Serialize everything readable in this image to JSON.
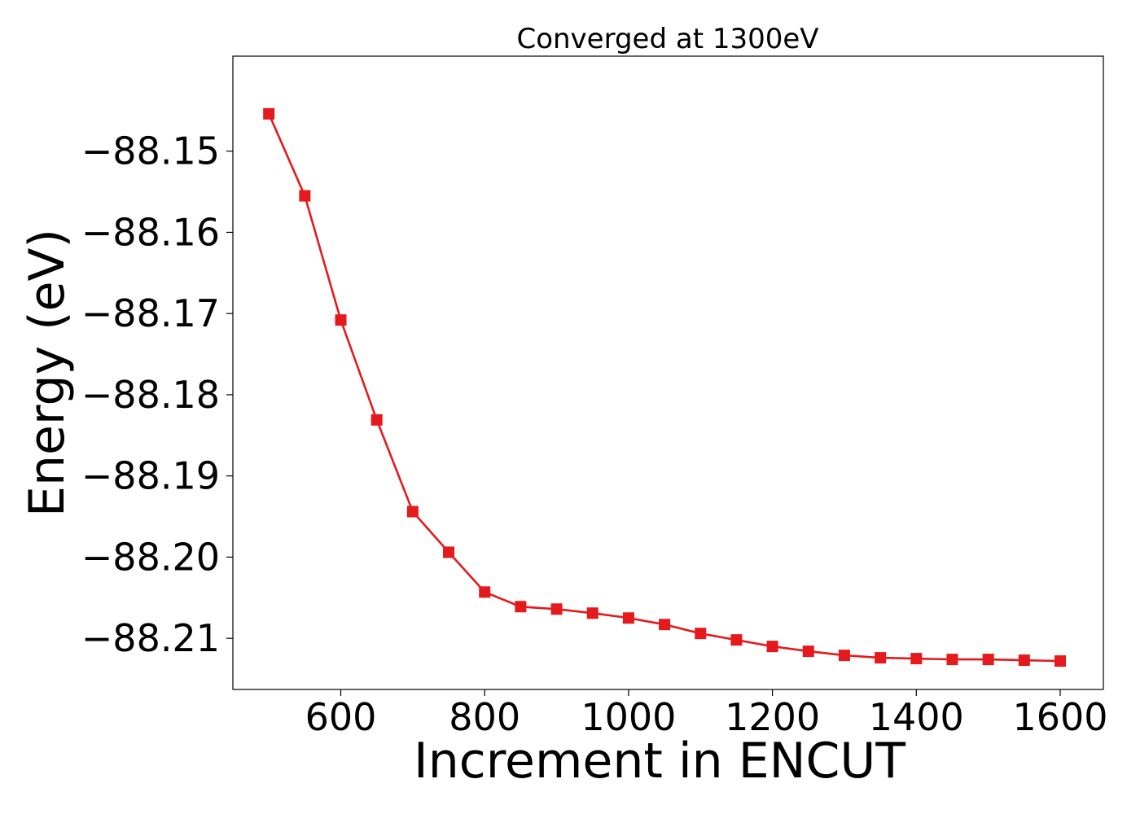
{
  "chart_data": {
    "type": "line",
    "title": "Converged at 1300eV",
    "xlabel": "Increment in ENCUT",
    "ylabel": "Energy (eV)",
    "xlim": [
      450,
      1660
    ],
    "ylim": [
      -88.2163,
      -88.1383
    ],
    "xticks": [
      600,
      800,
      1000,
      1200,
      1400,
      1600
    ],
    "yticks": [
      -88.15,
      -88.16,
      -88.17,
      -88.18,
      -88.19,
      -88.2,
      -88.21
    ],
    "ytick_labels": [
      "−88.15",
      "−88.16",
      "−88.17",
      "−88.18",
      "−88.19",
      "−88.20",
      "−88.21"
    ],
    "grid": false,
    "series": [
      {
        "color": "#e41a1c",
        "marker": "square",
        "x": [
          500,
          550,
          600,
          650,
          700,
          750,
          800,
          850,
          900,
          950,
          1000,
          1050,
          1100,
          1150,
          1200,
          1250,
          1300,
          1350,
          1400,
          1450,
          1500,
          1550,
          1600
        ],
        "y": [
          -88.1454,
          -88.1555,
          -88.1708,
          -88.1831,
          -88.1944,
          -88.1994,
          -88.2043,
          -88.2061,
          -88.2064,
          -88.2069,
          -88.2075,
          -88.2083,
          -88.2094,
          -88.2102,
          -88.211,
          -88.2116,
          -88.2121,
          -88.2124,
          -88.2125,
          -88.2126,
          -88.2126,
          -88.2127,
          -88.2128
        ]
      }
    ]
  }
}
